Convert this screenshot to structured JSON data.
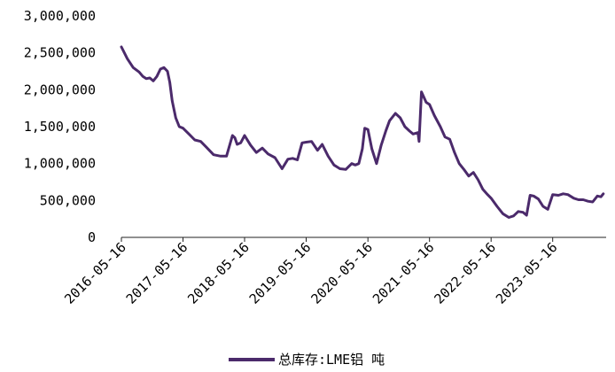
{
  "chart_data": {
    "type": "line",
    "title": "",
    "xlabel": "",
    "ylabel": "",
    "ylim": [
      0,
      3000000
    ],
    "x_tick_labels": [
      "2016-05-16",
      "2017-05-16",
      "2018-05-16",
      "2019-05-16",
      "2020-05-16",
      "2021-05-16",
      "2022-05-16",
      "2023-05-16"
    ],
    "y_tick_labels": [
      "0",
      "500,000",
      "1,000,000",
      "1,500,000",
      "2,000,000",
      "2,500,000",
      "3,000,000"
    ],
    "y_ticks": [
      0,
      500000,
      1000000,
      1500000,
      2000000,
      2500000,
      3000000
    ],
    "legend": {
      "position": "bottom",
      "label": "总库存:LME铝 吨"
    },
    "grid": false,
    "color": "#4b2a6b",
    "series": [
      {
        "name": "总库存:LME铝 吨",
        "x": [
          "2016-05-16",
          "2016-06-20",
          "2016-07-25",
          "2016-08-29",
          "2016-09-20",
          "2016-10-10",
          "2016-10-31",
          "2016-11-21",
          "2016-12-12",
          "2017-01-02",
          "2017-01-23",
          "2017-02-13",
          "2017-02-27",
          "2017-03-13",
          "2017-04-03",
          "2017-04-24",
          "2017-05-16",
          "2017-06-20",
          "2017-07-25",
          "2017-08-29",
          "2017-10-02",
          "2017-11-13",
          "2017-12-25",
          "2018-01-29",
          "2018-03-05",
          "2018-03-19",
          "2018-04-02",
          "2018-04-23",
          "2018-05-16",
          "2018-06-20",
          "2018-07-25",
          "2018-08-29",
          "2018-10-02",
          "2018-11-12",
          "2018-12-24",
          "2019-01-28",
          "2019-02-25",
          "2019-03-25",
          "2019-04-22",
          "2019-05-16",
          "2019-06-17",
          "2019-07-22",
          "2019-08-19",
          "2019-09-23",
          "2019-10-28",
          "2019-12-02",
          "2020-01-06",
          "2020-02-10",
          "2020-03-02",
          "2020-03-23",
          "2020-04-13",
          "2020-04-27",
          "2020-05-16",
          "2020-06-08",
          "2020-07-06",
          "2020-08-03",
          "2020-08-31",
          "2020-09-21",
          "2020-10-26",
          "2020-11-23",
          "2020-12-21",
          "2021-01-18",
          "2021-02-08",
          "2021-03-08",
          "2021-03-15",
          "2021-03-29",
          "2021-04-26",
          "2021-05-16",
          "2021-06-14",
          "2021-07-19",
          "2021-08-16",
          "2021-09-13",
          "2021-10-11",
          "2021-11-08",
          "2021-12-06",
          "2022-01-03",
          "2022-01-31",
          "2022-02-28",
          "2022-03-28",
          "2022-04-25",
          "2022-05-16",
          "2022-06-20",
          "2022-07-25",
          "2022-08-29",
          "2022-09-26",
          "2022-10-24",
          "2022-11-21",
          "2022-12-12",
          "2023-01-02",
          "2023-01-23",
          "2023-02-20",
          "2023-03-20",
          "2023-04-17",
          "2023-05-16",
          "2023-06-19",
          "2023-07-17",
          "2023-08-14",
          "2023-09-18",
          "2023-10-16",
          "2023-11-13",
          "2023-12-11",
          "2024-01-08",
          "2024-02-05",
          "2024-02-26",
          "2024-03-11"
        ],
        "values": [
          2580000,
          2420000,
          2300000,
          2240000,
          2180000,
          2150000,
          2160000,
          2120000,
          2180000,
          2280000,
          2300000,
          2250000,
          2100000,
          1850000,
          1620000,
          1500000,
          1480000,
          1400000,
          1320000,
          1300000,
          1220000,
          1120000,
          1100000,
          1100000,
          1380000,
          1350000,
          1260000,
          1280000,
          1380000,
          1250000,
          1150000,
          1210000,
          1130000,
          1080000,
          930000,
          1060000,
          1070000,
          1050000,
          1280000,
          1290000,
          1300000,
          1180000,
          1260000,
          1100000,
          980000,
          930000,
          920000,
          1000000,
          980000,
          1000000,
          1200000,
          1480000,
          1460000,
          1200000,
          1000000,
          1250000,
          1450000,
          1580000,
          1680000,
          1620000,
          1500000,
          1440000,
          1400000,
          1420000,
          1300000,
          1970000,
          1830000,
          1800000,
          1650000,
          1500000,
          1360000,
          1330000,
          1150000,
          1000000,
          920000,
          830000,
          880000,
          780000,
          650000,
          580000,
          530000,
          420000,
          320000,
          270000,
          290000,
          350000,
          340000,
          300000,
          570000,
          560000,
          520000,
          420000,
          380000,
          580000,
          570000,
          590000,
          580000,
          530000,
          510000,
          510000,
          490000,
          480000,
          560000,
          550000,
          590000
        ]
      }
    ]
  }
}
